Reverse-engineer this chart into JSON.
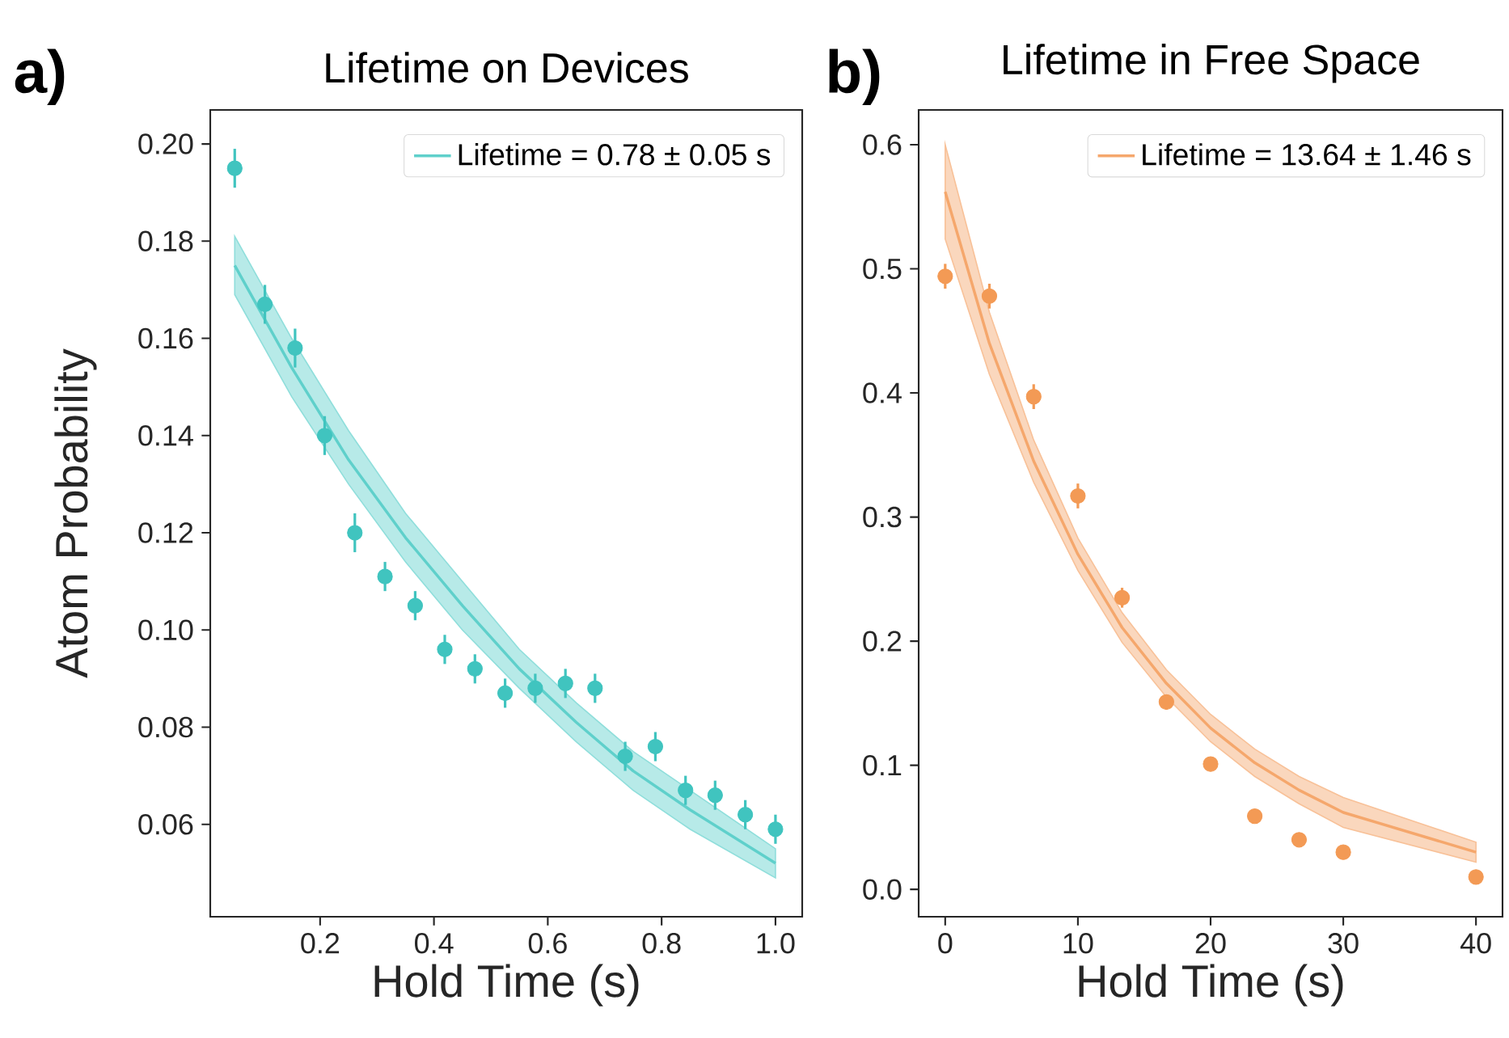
{
  "chart_data": [
    {
      "type": "scatter",
      "title": "Lifetime on Devices",
      "xlabel": "Hold Time (s)",
      "ylabel": "Atom Probability",
      "annotations": [
        "a)"
      ],
      "xlim": [
        0.007,
        1.047
      ],
      "ylim": [
        0.041,
        0.207
      ],
      "xticks": [
        0.2,
        0.4,
        0.6,
        0.8,
        {
          "value": 1.0,
          "label": "1.0"
        }
      ],
      "yticks": [
        0.06,
        0.08,
        {
          "value": 0.1,
          "label": "0.10"
        },
        0.12,
        0.14,
        0.16,
        0.18,
        {
          "value": 0.2,
          "label": "0.20"
        }
      ],
      "grid": false,
      "legend": "top right",
      "series": [
        {
          "marker": "circle",
          "color": "#40c4bf",
          "x": [
            0.05,
            0.103,
            0.156,
            0.208,
            0.261,
            0.314,
            0.367,
            0.419,
            0.472,
            0.525,
            0.578,
            0.631,
            0.683,
            0.736,
            0.789,
            0.842,
            0.894,
            0.947,
            1.0
          ],
          "values": [
            0.195,
            0.167,
            0.158,
            0.14,
            0.12,
            0.111,
            0.105,
            0.096,
            0.092,
            0.087,
            0.088,
            0.089,
            0.088,
            0.074,
            0.076,
            0.067,
            0.066,
            0.062,
            0.059
          ],
          "errors": [
            0.004,
            0.004,
            0.004,
            0.004,
            0.004,
            0.003,
            0.003,
            0.003,
            0.003,
            0.003,
            0.003,
            0.003,
            0.003,
            0.003,
            0.003,
            0.003,
            0.003,
            0.003,
            0.003
          ]
        },
        {
          "type": "line",
          "name": "Lifetime = 0.78 ± 0.05 s",
          "color": "#5fd0cb",
          "x": [
            0.05,
            0.15,
            0.25,
            0.35,
            0.45,
            0.55,
            0.65,
            0.75,
            0.85,
            1.0
          ],
          "values": [
            0.175,
            0.154,
            0.135,
            0.119,
            0.105,
            0.092,
            0.081,
            0.071,
            0.063,
            0.052
          ],
          "lower": [
            0.169,
            0.148,
            0.13,
            0.114,
            0.1,
            0.088,
            0.077,
            0.067,
            0.059,
            0.049
          ],
          "upper": [
            0.181,
            0.16,
            0.141,
            0.124,
            0.11,
            0.096,
            0.085,
            0.075,
            0.067,
            0.055
          ]
        }
      ]
    },
    {
      "type": "scatter",
      "title": "Lifetime in Free Space",
      "xlabel": "Hold Time (s)",
      "annotations": [
        "b)"
      ],
      "xlim": [
        -2,
        42
      ],
      "ylim": [
        -0.022,
        0.628
      ],
      "xticks": [
        0,
        10,
        20,
        30,
        40
      ],
      "yticks": [
        {
          "value": 0,
          "label": "0.0"
        },
        0.1,
        0.2,
        0.3,
        0.4,
        0.5,
        0.6
      ],
      "grid": false,
      "legend": "top right",
      "series": [
        {
          "marker": "circle",
          "color": "#f39a55",
          "x": [
            0,
            3.33,
            6.67,
            10,
            13.33,
            16.67,
            20,
            23.33,
            26.67,
            30,
            40
          ],
          "values": [
            0.494,
            0.478,
            0.397,
            0.317,
            0.235,
            0.151,
            0.101,
            0.059,
            0.04,
            0.03,
            0.01
          ],
          "errors": [
            0.01,
            0.01,
            0.01,
            0.01,
            0.008,
            0.006,
            0.005,
            0.004,
            0.004,
            0.004,
            0.004
          ]
        },
        {
          "type": "line",
          "name": "Lifetime = 13.64 ± 1.46 s",
          "color": "#f5a76c",
          "x": [
            0,
            3.33,
            6.67,
            10,
            13.33,
            16.67,
            20,
            23.33,
            26.67,
            30,
            40
          ],
          "values": [
            0.562,
            0.44,
            0.345,
            0.27,
            0.211,
            0.166,
            0.13,
            0.102,
            0.08,
            0.062,
            0.03
          ],
          "lower": [
            0.524,
            0.415,
            0.328,
            0.257,
            0.199,
            0.155,
            0.119,
            0.091,
            0.069,
            0.05,
            0.022
          ],
          "upper": [
            0.6,
            0.465,
            0.362,
            0.283,
            0.223,
            0.177,
            0.141,
            0.113,
            0.091,
            0.074,
            0.038
          ]
        }
      ]
    }
  ]
}
